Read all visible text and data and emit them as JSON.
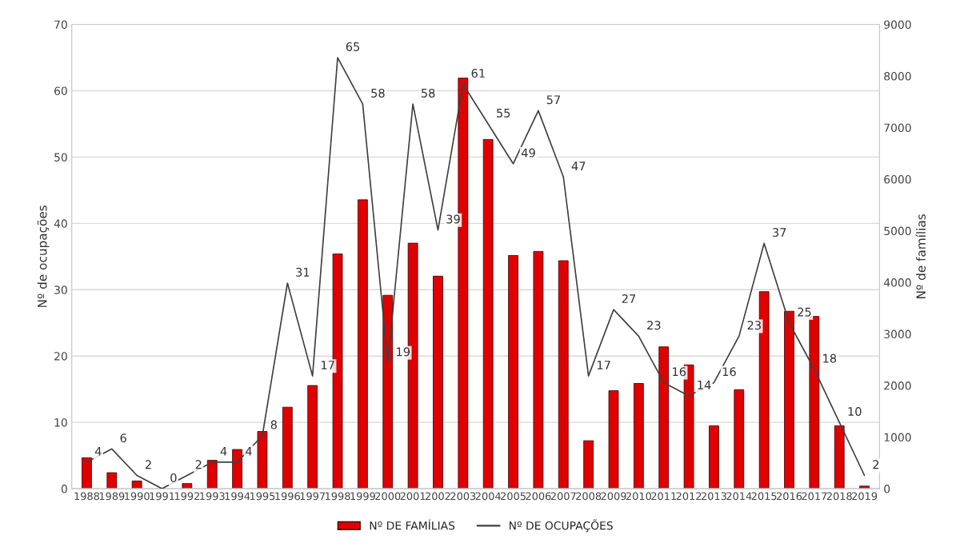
{
  "chart_data": {
    "type": "bar",
    "ylabel": "Nº de ocupações",
    "y2label": "Nº de famílias",
    "categories": [
      "1988",
      "1989",
      "1990",
      "1991",
      "1992",
      "1993",
      "1994",
      "1995",
      "1996",
      "1997",
      "1998",
      "1999",
      "2000",
      "2001",
      "2002",
      "2003",
      "2004",
      "2005",
      "2006",
      "2007",
      "2008",
      "2009",
      "2010",
      "2011",
      "2012",
      "2013",
      "2014",
      "2015",
      "2016",
      "2017",
      "2018",
      "2019"
    ],
    "series": [
      {
        "name": "Nº DE FAMÍLIAS",
        "axis": "y2",
        "color": "#e00000",
        "values": [
          600,
          310,
          150,
          0,
          100,
          550,
          760,
          1110,
          1580,
          2000,
          4550,
          5600,
          3750,
          4760,
          4120,
          7960,
          6770,
          4520,
          4600,
          4420,
          930,
          1900,
          2040,
          2750,
          2400,
          1220,
          1920,
          3820,
          3440,
          3340,
          1220,
          50
        ]
      },
      {
        "name": "Nº DE OCUPAÇÕES",
        "type": "line",
        "axis": "y",
        "color": "#404040",
        "line_style": "solid",
        "marker": "none",
        "values": [
          4,
          6,
          2,
          0,
          2,
          4,
          4,
          8,
          31,
          17,
          65,
          58,
          19,
          58,
          39,
          61,
          55,
          49,
          57,
          47,
          17,
          27,
          23,
          16,
          14,
          16,
          23,
          37,
          25,
          18,
          10,
          2
        ],
        "value_labels": [
          "4",
          "6",
          "2",
          "0",
          "2",
          "4",
          "4",
          "8",
          "31",
          "17",
          "65",
          "58",
          "19",
          "58",
          "39",
          "61",
          "55",
          "49",
          "57",
          "47",
          "17",
          "27",
          "23",
          "16",
          "14",
          "16",
          "23",
          "37",
          "25",
          "18",
          "10",
          "2"
        ]
      }
    ],
    "ylim": [
      0,
      70
    ],
    "yticks": [
      0,
      10,
      20,
      30,
      40,
      50,
      60,
      70
    ],
    "y2lim": [
      0,
      9000
    ],
    "y2ticks": [
      0,
      1000,
      2000,
      3000,
      4000,
      5000,
      6000,
      7000,
      8000,
      9000
    ],
    "grid": "y",
    "legend": "bottom"
  }
}
